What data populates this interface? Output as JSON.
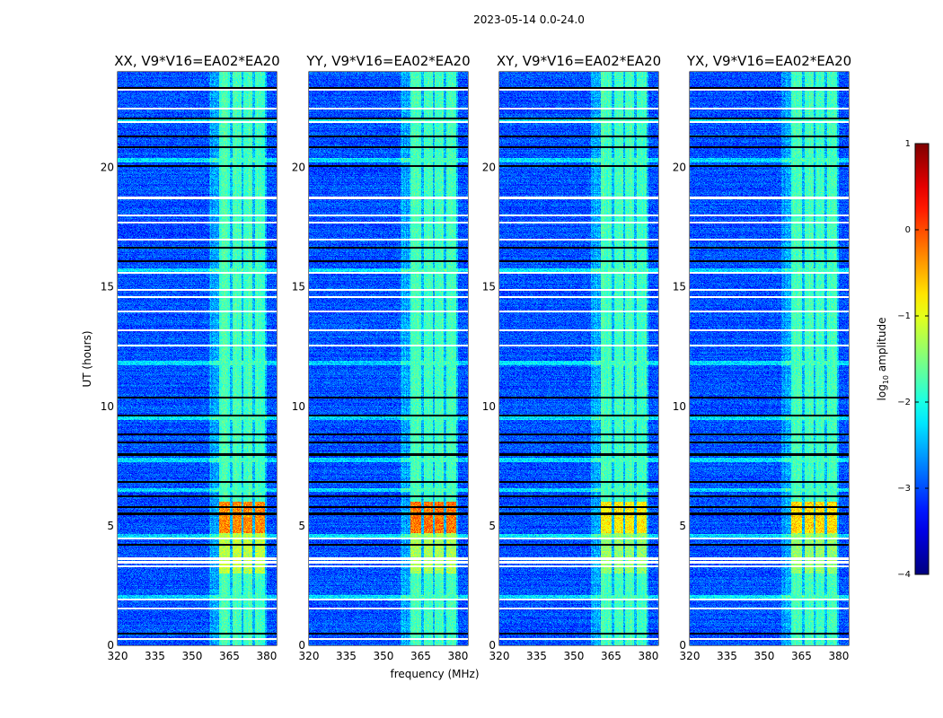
{
  "chart_data": {
    "type": "heatmap",
    "title": "2023-05-14 0.0-24.0",
    "xlabel": "frequency (MHz)",
    "ylabel": "UT (hours)",
    "xlim": [
      320,
      384
    ],
    "ylim": [
      0,
      24
    ],
    "xticks": [
      320,
      335,
      350,
      365,
      380
    ],
    "yticks": [
      0,
      5,
      10,
      15,
      20
    ],
    "panels": [
      {
        "title": "XX, V9*V16=EA02*EA20",
        "rfi_peak": -0.3,
        "rfi_mid": -1.2
      },
      {
        "title": "YY, V9*V16=EA02*EA20",
        "rfi_peak": -0.2,
        "rfi_mid": -1.3
      },
      {
        "title": "XY, V9*V16=EA02*EA20",
        "rfi_peak": -0.8,
        "rfi_mid": -1.4
      },
      {
        "title": "YX, V9*V16=EA02*EA20",
        "rfi_peak": -0.7,
        "rfi_mid": -1.4
      }
    ],
    "colorbar": {
      "label_main": "log",
      "label_sub": "10",
      "label_rest": " amplitude",
      "range": [
        -4,
        1
      ],
      "ticks": [
        1,
        0,
        -1,
        -2,
        -3,
        -4
      ],
      "tick_labels": [
        "1",
        "0",
        "−1",
        "−2",
        "−3",
        "−4"
      ],
      "colormap": "jet"
    },
    "background_level": -3.1,
    "rfi_subbands_mhz": [
      [
        361,
        365.2
      ],
      [
        366.2,
        369.8
      ],
      [
        370.8,
        374.4
      ],
      [
        375.5,
        379.4
      ]
    ],
    "rfi_band_level": -1.9,
    "rfi_strong_hours": [
      4.7,
      6.0
    ],
    "rfi_moderate_hours": [
      3.0,
      4.7
    ],
    "flagged_rows_hours": [
      0.26,
      1.54,
      1.91,
      3.3,
      3.48,
      3.63,
      4.46,
      12.55,
      13.18,
      13.97,
      14.57,
      14.87,
      15.58,
      16.97,
      17.7,
      18.0,
      18.73,
      21.9,
      22.47,
      23.26
    ],
    "dropout_rows_hours": [
      0.5,
      4.2,
      5.5,
      5.8,
      6.22,
      6.82,
      7.98,
      8.5,
      8.84,
      9.63,
      10.37,
      16.07,
      16.63,
      20.07,
      20.86,
      21.3,
      22.06,
      23.33
    ],
    "elevated_rows_hours": [
      2.0,
      4.55,
      6.5,
      7.75,
      9.5,
      11.8,
      15.7,
      20.3,
      21.95
    ]
  }
}
